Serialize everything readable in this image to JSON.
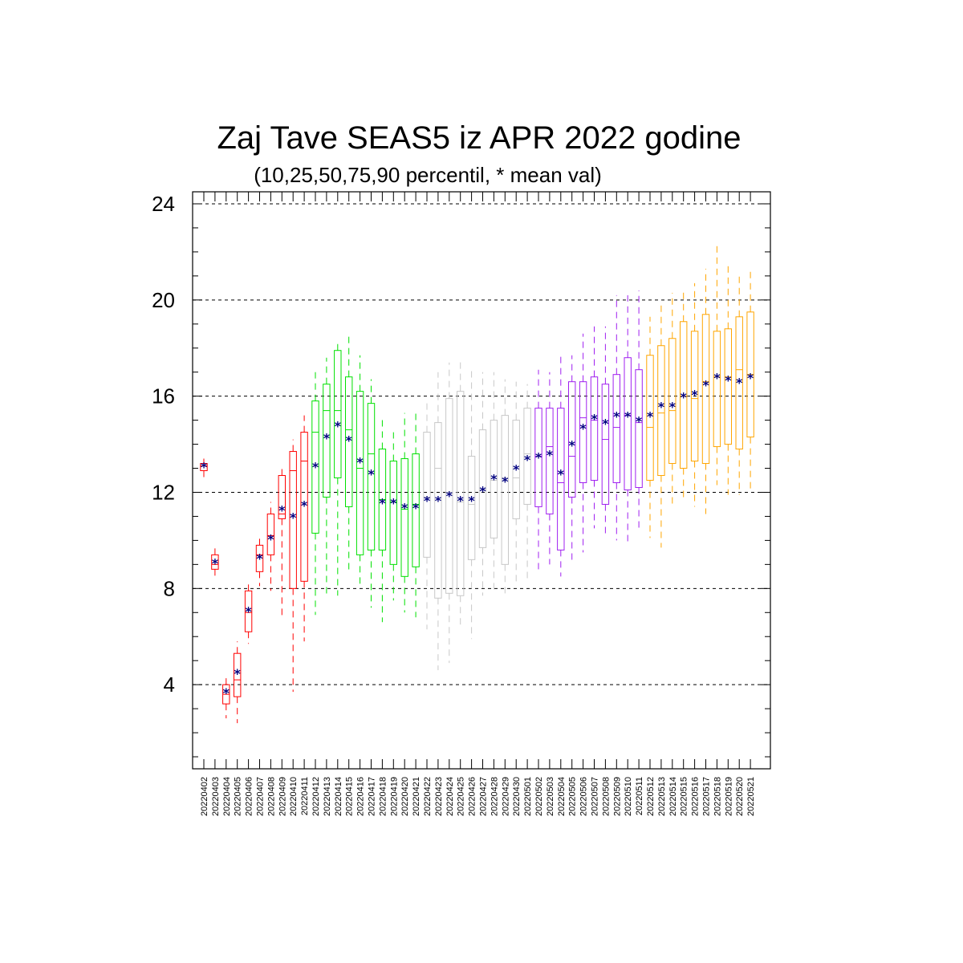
{
  "chart_data": {
    "type": "box",
    "title": "Zaj Tave SEAS5 iz APR 2022 godine",
    "subtitle": "(10,25,50,75,90 percentil, * mean val)",
    "xlabel": "",
    "ylabel": "",
    "ylim": [
      0.5,
      24.5
    ],
    "yticks": [
      "4",
      "8",
      "12",
      "16",
      "20",
      "24"
    ],
    "grid": "horizontal dashed at major ticks",
    "mean_color": "#000080",
    "categories": [
      "20220402",
      "20220403",
      "20220404",
      "20220405",
      "20220406",
      "20220407",
      "20220408",
      "20220409",
      "20220410",
      "20220411",
      "20220412",
      "20220413",
      "20220414",
      "20220415",
      "20220416",
      "20220417",
      "20220418",
      "20220419",
      "20220420",
      "20220421",
      "20220422",
      "20220423",
      "20220424",
      "20220425",
      "20220426",
      "20220427",
      "20220428",
      "20220429",
      "20220430",
      "20220501",
      "20220502",
      "20220503",
      "20220504",
      "20220505",
      "20220506",
      "20220507",
      "20220508",
      "20220509",
      "20220510",
      "20220511",
      "20220512",
      "20220513",
      "20220514",
      "20220515",
      "20220516",
      "20220517",
      "20220518",
      "20220519",
      "20220520",
      "20220521"
    ],
    "colors": [
      "#ff0000",
      "#ff0000",
      "#ff0000",
      "#ff0000",
      "#ff0000",
      "#ff0000",
      "#ff0000",
      "#ff0000",
      "#ff0000",
      "#ff0000",
      "#00e000",
      "#00e000",
      "#00e000",
      "#00e000",
      "#00e000",
      "#00e000",
      "#00e000",
      "#00e000",
      "#00e000",
      "#00e000",
      "#c8c8c8",
      "#c8c8c8",
      "#c8c8c8",
      "#c8c8c8",
      "#c8c8c8",
      "#c8c8c8",
      "#c8c8c8",
      "#c8c8c8",
      "#c8c8c8",
      "#c8c8c8",
      "#a020f0",
      "#a020f0",
      "#a020f0",
      "#a020f0",
      "#a020f0",
      "#a020f0",
      "#a020f0",
      "#a020f0",
      "#a020f0",
      "#a020f0",
      "#ffa500",
      "#ffa500",
      "#ffa500",
      "#ffa500",
      "#ffa500",
      "#ffa500",
      "#ffa500",
      "#ffa500",
      "#ffa500",
      "#ffa500"
    ],
    "p10": [
      12.6,
      8.5,
      2.6,
      2.4,
      5.7,
      8.1,
      7.9,
      6.8,
      3.7,
      5.8,
      6.9,
      7.7,
      7.7,
      8.7,
      8.2,
      7.2,
      6.6,
      7.5,
      7.0,
      6.8,
      6.3,
      4.6,
      4.9,
      6.3,
      5.9,
      7.7,
      7.8,
      7.7,
      8.3,
      8.3,
      8.8,
      9.0,
      8.5,
      9.1,
      9.5,
      10.5,
      10.2,
      10.0,
      9.9,
      10.4,
      10.1,
      9.7,
      11.5,
      11.6,
      11.4,
      11.1,
      12.3,
      11.9,
      11.9,
      12.1
    ],
    "p25": [
      12.9,
      8.8,
      3.2,
      3.5,
      6.2,
      8.7,
      9.4,
      10.9,
      8.0,
      8.3,
      10.3,
      11.8,
      12.6,
      11.4,
      9.4,
      9.6,
      9.6,
      9.0,
      8.5,
      8.9,
      9.3,
      7.6,
      7.8,
      7.7,
      9.2,
      9.7,
      10.1,
      9.0,
      10.9,
      11.5,
      11.4,
      11.1,
      9.6,
      11.8,
      12.4,
      12.5,
      11.5,
      12.4,
      12.1,
      12.2,
      12.5,
      12.7,
      13.2,
      13.0,
      13.3,
      13.2,
      13.9,
      14.0,
      13.8,
      14.3
    ],
    "p50": [
      13.1,
      9.0,
      3.6,
      4.2,
      7.0,
      9.4,
      10.2,
      11.1,
      12.9,
      13.3,
      14.5,
      15.4,
      15.4,
      14.6,
      13.0,
      13.6,
      11.7,
      11.6,
      11.3,
      11.5,
      11.8,
      13.0,
      12.0,
      11.6,
      11.5,
      12.1,
      12.5,
      12.6,
      12.6,
      13.6,
      13.5,
      13.9,
      12.4,
      13.5,
      15.1,
      15.0,
      14.2,
      14.7,
      15.2,
      14.9,
      14.7,
      15.3,
      15.4,
      16.0,
      15.9,
      16.6,
      16.8,
      16.8,
      17.1,
      16.9
    ],
    "p75": [
      13.2,
      9.4,
      4.0,
      5.3,
      7.9,
      9.8,
      11.1,
      12.7,
      13.7,
      14.5,
      15.8,
      16.5,
      17.9,
      16.8,
      16.2,
      15.7,
      13.8,
      13.3,
      13.4,
      13.6,
      14.5,
      14.9,
      15.9,
      16.2,
      13.5,
      14.6,
      15.0,
      15.2,
      15.0,
      15.5,
      15.5,
      15.5,
      15.5,
      16.6,
      16.6,
      16.8,
      16.5,
      16.9,
      17.6,
      17.1,
      17.7,
      18.1,
      18.4,
      19.1,
      18.7,
      19.4,
      18.7,
      18.8,
      19.3,
      19.5
    ],
    "p90": [
      13.4,
      9.8,
      4.4,
      5.8,
      8.2,
      10.2,
      11.6,
      13.0,
      14.2,
      15.2,
      17.0,
      17.6,
      18.3,
      18.6,
      17.7,
      16.7,
      15.2,
      14.5,
      15.3,
      15.4,
      15.8,
      17.0,
      17.4,
      17.5,
      17.2,
      17.0,
      17.0,
      16.7,
      16.6,
      16.5,
      17.1,
      17.0,
      17.7,
      17.7,
      18.6,
      18.9,
      18.9,
      20.2,
      20.2,
      20.4,
      19.3,
      19.8,
      20.3,
      20.5,
      20.7,
      21.3,
      22.4,
      21.5,
      21.1,
      21.3
    ],
    "mean": [
      13.1,
      9.1,
      3.7,
      4.5,
      7.1,
      9.3,
      10.1,
      11.3,
      11.0,
      11.5,
      13.1,
      14.3,
      14.8,
      14.2,
      13.3,
      12.8,
      11.6,
      11.6,
      11.4,
      11.4,
      11.7,
      11.7,
      11.9,
      11.7,
      11.7,
      12.1,
      12.6,
      12.5,
      13.0,
      13.4,
      13.5,
      13.6,
      12.8,
      14.0,
      14.7,
      15.1,
      14.9,
      15.2,
      15.2,
      15.0,
      15.2,
      15.6,
      15.6,
      16.0,
      16.1,
      16.5,
      16.8,
      16.7,
      16.6,
      16.8
    ]
  }
}
